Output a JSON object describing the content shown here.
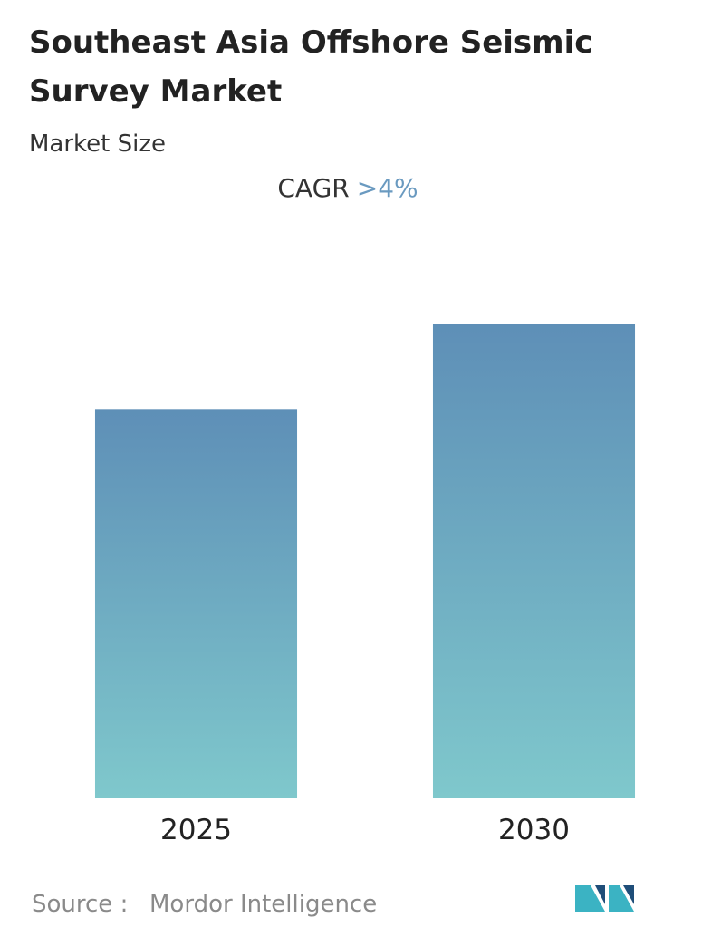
{
  "chart_data": {
    "type": "bar",
    "title": "Southeast Asia Offshore Seismic",
    "title_line2": "Survey Market",
    "subtitle": "Market Size",
    "cagr_label": "CAGR",
    "cagr_value": ">4%",
    "categories": [
      "2025",
      "2030"
    ],
    "values": [
      82,
      100
    ],
    "ylim": [
      0,
      100
    ],
    "color_top": "#5e8fb7",
    "color_bottom": "#7fc8cc",
    "source_label": "Source :",
    "source": "Mordor Intelligence"
  }
}
